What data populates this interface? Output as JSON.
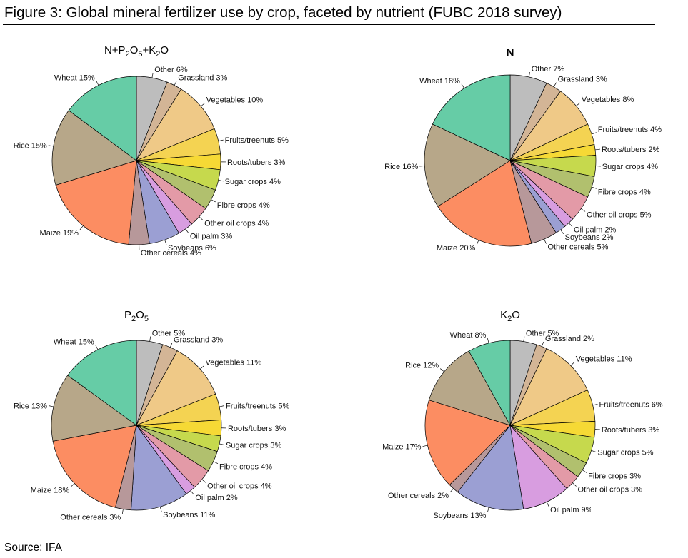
{
  "figure": {
    "title": "Figure 3: Global mineral fertilizer use by crop, faceted by nutrient (FUBC 2018 survey)",
    "source": "Source: IFA"
  },
  "colors": {
    "Other": "#bdbdbd",
    "Grassland": "#d3b596",
    "Vegetables": "#efc987",
    "Fruits/treenuts": "#f4d352",
    "Roots/tubers": "#f6d935",
    "Sugar crops": "#c6d94d",
    "Fibre crops": "#b1c06e",
    "Other oil crops": "#e39aa7",
    "Oil palm": "#d89de0",
    "Soybeans": "#9b9fd3",
    "Other cereals": "#b7989a",
    "Maize": "#fc8d62",
    "Rice": "#b7a789",
    "Wheat": "#66cca6"
  },
  "chart_data": [
    {
      "type": "pie",
      "title_parts": [
        [
          "N+P",
          ""
        ],
        [
          "2",
          "sub"
        ],
        [
          "O",
          ""
        ],
        [
          "5",
          "sub"
        ],
        [
          "+K",
          ""
        ],
        [
          "2",
          "sub"
        ],
        [
          "O",
          ""
        ]
      ],
      "slices": [
        {
          "label": "Other",
          "value": 6,
          "text": "Other 6%"
        },
        {
          "label": "Grassland",
          "value": 3,
          "text": "Grassland 3%"
        },
        {
          "label": "Vegetables",
          "value": 10,
          "text": "Vegetables 10%"
        },
        {
          "label": "Fruits/treenuts",
          "value": 5,
          "text": "Fruits/treenuts 5%"
        },
        {
          "label": "Roots/tubers",
          "value": 3,
          "text": "Roots/tubers 3%"
        },
        {
          "label": "Sugar crops",
          "value": 4,
          "text": "Sugar crops 4%"
        },
        {
          "label": "Fibre crops",
          "value": 4,
          "text": "Fibre crops 4%"
        },
        {
          "label": "Other oil crops",
          "value": 4,
          "text": "Other oil crops 4%"
        },
        {
          "label": "Oil palm",
          "value": 3,
          "text": "Oil palm 3%"
        },
        {
          "label": "Soybeans",
          "value": 6,
          "text": "Soybeans 6%"
        },
        {
          "label": "Other cereals",
          "value": 4,
          "text": "Other cereals 4%"
        },
        {
          "label": "Maize",
          "value": 19,
          "text": "Maize 19%"
        },
        {
          "label": "Rice",
          "value": 15,
          "text": "Rice 15%"
        },
        {
          "label": "Wheat",
          "value": 15,
          "text": "Wheat 15%"
        }
      ]
    },
    {
      "type": "pie",
      "title_parts": [
        [
          "N",
          "bold"
        ]
      ],
      "slices": [
        {
          "label": "Other",
          "value": 7,
          "text": "Other 7%"
        },
        {
          "label": "Grassland",
          "value": 3,
          "text": "Grassland 3%"
        },
        {
          "label": "Vegetables",
          "value": 8,
          "text": "Vegetables 8%"
        },
        {
          "label": "Fruits/treenuts",
          "value": 4,
          "text": "Fruits/treenuts 4%"
        },
        {
          "label": "Roots/tubers",
          "value": 2,
          "text": "Roots/tubers 2%"
        },
        {
          "label": "Sugar crops",
          "value": 4,
          "text": "Sugar crops 4%"
        },
        {
          "label": "Fibre crops",
          "value": 4,
          "text": "Fibre crops 4%"
        },
        {
          "label": "Other oil crops",
          "value": 5,
          "text": "Other oil crops 5%"
        },
        {
          "label": "Oil palm",
          "value": 2,
          "text": "Oil palm 2%"
        },
        {
          "label": "Soybeans",
          "value": 2,
          "text": "Soybeans 2%"
        },
        {
          "label": "Other cereals",
          "value": 5,
          "text": "Other cereals 5%"
        },
        {
          "label": "Maize",
          "value": 20,
          "text": "Maize 20%"
        },
        {
          "label": "Rice",
          "value": 16,
          "text": "Rice 16%"
        },
        {
          "label": "Wheat",
          "value": 18,
          "text": "Wheat 18%"
        }
      ]
    },
    {
      "type": "pie",
      "title_parts": [
        [
          "P",
          ""
        ],
        [
          "2",
          "sub"
        ],
        [
          "O",
          ""
        ],
        [
          "5",
          "sub"
        ]
      ],
      "slices": [
        {
          "label": "Other",
          "value": 5,
          "text": "Other 5%"
        },
        {
          "label": "Grassland",
          "value": 3,
          "text": "Grassland 3%"
        },
        {
          "label": "Vegetables",
          "value": 11,
          "text": "Vegetables 11%"
        },
        {
          "label": "Fruits/treenuts",
          "value": 5,
          "text": "Fruits/treenuts 5%"
        },
        {
          "label": "Roots/tubers",
          "value": 3,
          "text": "Roots/tubers 3%"
        },
        {
          "label": "Sugar crops",
          "value": 3,
          "text": "Sugar crops 3%"
        },
        {
          "label": "Fibre crops",
          "value": 4,
          "text": "Fibre crops 4%"
        },
        {
          "label": "Other oil crops",
          "value": 4,
          "text": "Other oil crops 4%"
        },
        {
          "label": "Oil palm",
          "value": 2,
          "text": "Oil palm 2%"
        },
        {
          "label": "Soybeans",
          "value": 11,
          "text": "Soybeans 11%"
        },
        {
          "label": "Other cereals",
          "value": 3,
          "text": "Other cereals 3%"
        },
        {
          "label": "Maize",
          "value": 18,
          "text": "Maize 18%"
        },
        {
          "label": "Rice",
          "value": 13,
          "text": "Rice 13%"
        },
        {
          "label": "Wheat",
          "value": 15,
          "text": "Wheat 15%"
        }
      ]
    },
    {
      "type": "pie",
      "title_parts": [
        [
          "K",
          ""
        ],
        [
          "2",
          "sub"
        ],
        [
          "O",
          ""
        ]
      ],
      "slices": [
        {
          "label": "Other",
          "value": 5,
          "text": "Other 5%"
        },
        {
          "label": "Grassland",
          "value": 2,
          "text": "Grassland 2%"
        },
        {
          "label": "Vegetables",
          "value": 11,
          "text": "Vegetables 11%"
        },
        {
          "label": "Fruits/treenuts",
          "value": 6,
          "text": "Fruits/treenuts 6%"
        },
        {
          "label": "Roots/tubers",
          "value": 3,
          "text": "Roots/tubers 3%"
        },
        {
          "label": "Sugar crops",
          "value": 5,
          "text": "Sugar crops 5%"
        },
        {
          "label": "Fibre crops",
          "value": 3,
          "text": "Fibre crops 3%"
        },
        {
          "label": "Other oil crops",
          "value": 3,
          "text": "Other oil crops 3%"
        },
        {
          "label": "Oil palm",
          "value": 9,
          "text": "Oil palm 9%"
        },
        {
          "label": "Soybeans",
          "value": 13,
          "text": "Soybeans 13%"
        },
        {
          "label": "Other cereals",
          "value": 2,
          "text": "Other cereals 2%"
        },
        {
          "label": "Maize",
          "value": 17,
          "text": "Maize 17%"
        },
        {
          "label": "Rice",
          "value": 12,
          "text": "Rice 12%"
        },
        {
          "label": "Wheat",
          "value": 8,
          "text": "Wheat 8%"
        }
      ]
    }
  ]
}
